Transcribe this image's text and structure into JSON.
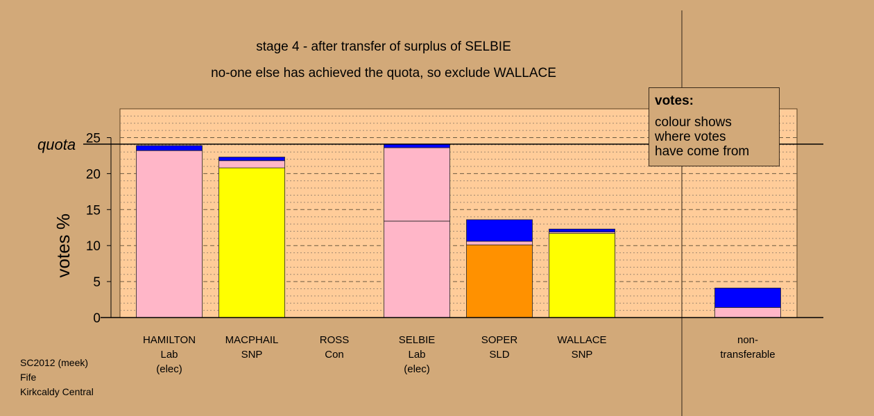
{
  "titles": {
    "line1": "stage 4 - after transfer of surplus of SELBIE",
    "line2": "no-one else has achieved the quota, so exclude WALLACE"
  },
  "legend": {
    "title": "votes:",
    "lines": [
      "colour shows",
      "where votes",
      "have come from"
    ]
  },
  "footer": [
    "SC2012 (meek)",
    "Fife",
    "Kirkcaldy Central"
  ],
  "colors": {
    "background": "#D2A979",
    "plot_background": "#FFCC99",
    "Lab": "#FFB6C8",
    "SNP": "#FFFF00",
    "SLD": "#FF9100",
    "Con": "#0000FF"
  },
  "chart_data": {
    "type": "bar",
    "stacked": true,
    "ylabel": "votes %",
    "ylim": [
      0,
      29
    ],
    "yticks": [
      0,
      5,
      10,
      15,
      20,
      25
    ],
    "quota": 24.1,
    "quota_label": "quota",
    "grid": true,
    "categories": [
      {
        "name": "HAMILTON",
        "party": "Lab",
        "note": "(elec)"
      },
      {
        "name": "MACPHAIL",
        "party": "SNP",
        "note": ""
      },
      {
        "name": "ROSS",
        "party": "Con",
        "note": ""
      },
      {
        "name": "SELBIE",
        "party": "Lab",
        "note": "(elec)"
      },
      {
        "name": "SOPER",
        "party": "SLD",
        "note": ""
      },
      {
        "name": "WALLACE",
        "party": "SNP",
        "note": ""
      },
      {
        "name": "non-",
        "party": "transferable",
        "note": ""
      }
    ],
    "segments": [
      [
        {
          "color": "Lab",
          "value": 23.2
        },
        {
          "color": "Con",
          "value": 0.7
        }
      ],
      [
        {
          "color": "SNP",
          "value": 20.8
        },
        {
          "color": "Lab",
          "value": 1.0
        },
        {
          "color": "Con",
          "value": 0.5
        }
      ],
      [],
      [
        {
          "color": "Lab",
          "value": 13.4
        },
        {
          "color": "Lab",
          "value": 10.2
        },
        {
          "color": "Con",
          "value": 0.5
        }
      ],
      [
        {
          "color": "SLD",
          "value": 10.1
        },
        {
          "color": "Lab",
          "value": 0.5
        },
        {
          "color": "Con",
          "value": 3.0
        }
      ],
      [
        {
          "color": "SNP",
          "value": 11.7
        },
        {
          "color": "Lab",
          "value": 0.2
        },
        {
          "color": "Con",
          "value": 0.4
        }
      ],
      [
        {
          "color": "Lab",
          "value": 1.4
        },
        {
          "color": "Con",
          "value": 2.7
        }
      ]
    ]
  }
}
